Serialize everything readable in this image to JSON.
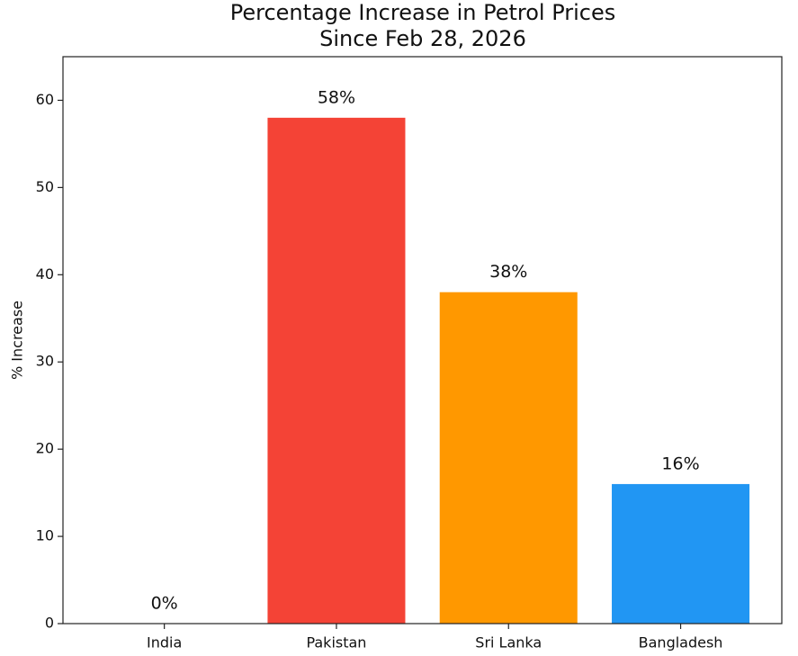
{
  "chart_data": {
    "type": "bar",
    "title": [
      "Percentage Increase in Petrol Prices",
      "Since Feb 28, 2026"
    ],
    "y_label": "% Increase",
    "categories": [
      "India",
      "Pakistan",
      "Sri Lanka",
      "Bangladesh"
    ],
    "values": [
      0,
      58,
      38,
      16
    ],
    "value_labels": [
      "0%",
      "58%",
      "38%",
      "16%"
    ],
    "colors": [
      null,
      "#f44336",
      "#ff9800",
      "#2196f3"
    ],
    "ylim": [
      0,
      65
    ],
    "yticks": [
      0,
      10,
      20,
      30,
      40,
      50,
      60
    ],
    "grid": false
  }
}
